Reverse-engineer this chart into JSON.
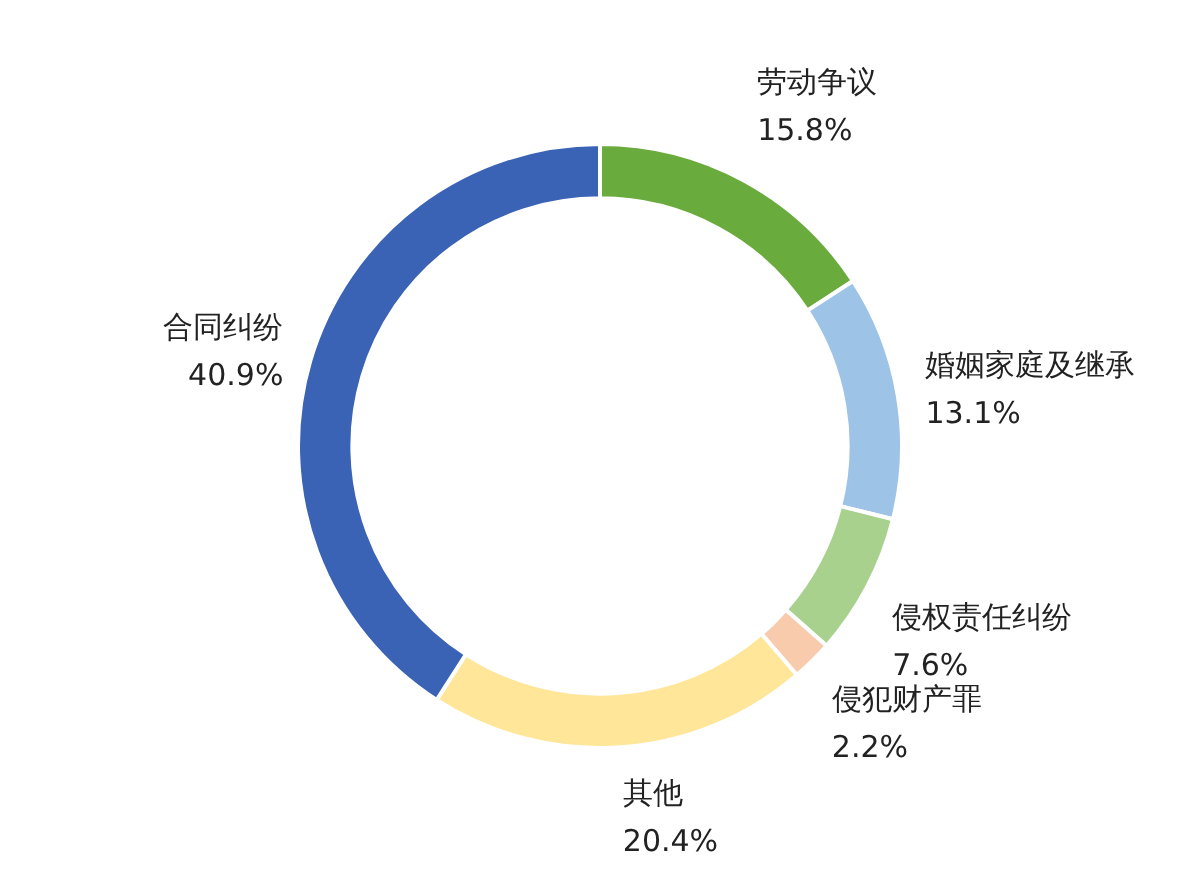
{
  "chart_data": {
    "type": "donut",
    "categories": [
      "劳动争议",
      "婚姻家庭及继承",
      "侵权责任纠纷",
      "侵犯财产罪",
      "其他",
      "合同纠纷"
    ],
    "values": [
      15.8,
      13.1,
      7.6,
      2.2,
      20.4,
      40.9
    ],
    "value_labels": [
      "15.8%",
      "13.1%",
      "7.6%",
      "2.2%",
      "20.4%",
      "40.9%"
    ],
    "colors": [
      "#6aab3d",
      "#9dc3e6",
      "#a9d18e",
      "#f8cbad",
      "#ffe699",
      "#3a62b5"
    ],
    "legend": false
  }
}
